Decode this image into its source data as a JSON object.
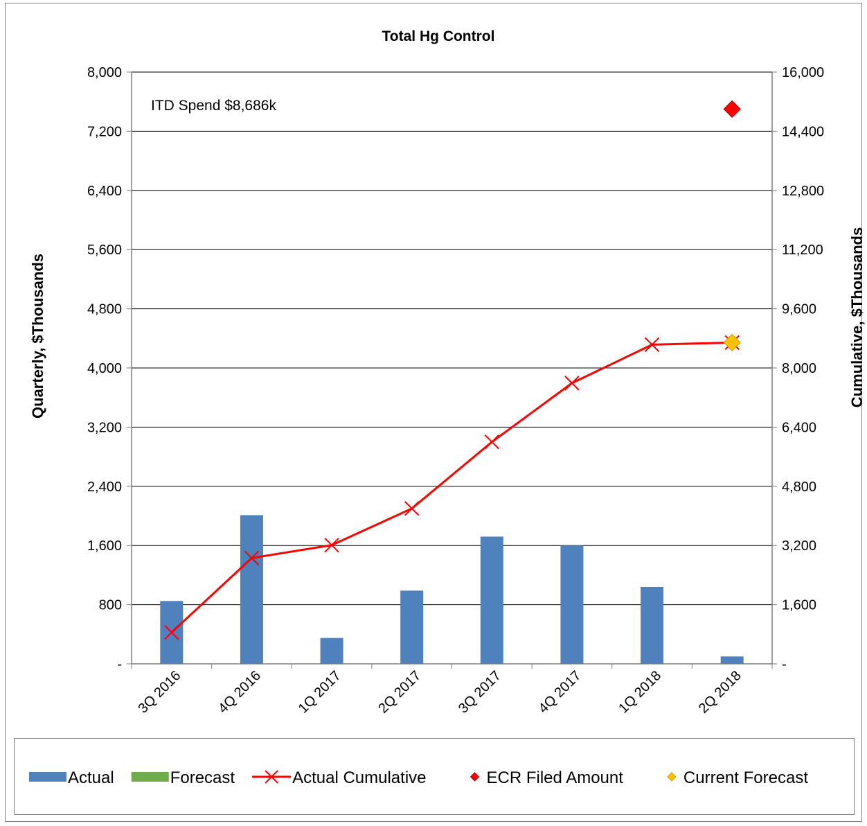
{
  "chart_data": {
    "type": "bar",
    "title": "Total Hg Control",
    "annotation": "ITD Spend  $8,686k",
    "ylabel": "Quarterly, $Thousands",
    "y2label": "Cumulative, $Thousands",
    "ylim": [
      0,
      8000
    ],
    "y2lim": [
      0,
      16000
    ],
    "yticks": [
      "-",
      "800",
      "1,600",
      "2,400",
      "3,200",
      "4,000",
      "4,800",
      "5,600",
      "6,400",
      "7,200",
      "8,000"
    ],
    "y2ticks": [
      "-",
      "1,600",
      "3,200",
      "4,800",
      "6,400",
      "8,000",
      "9,600",
      "11,200",
      "12,800",
      "14,400",
      "16,000"
    ],
    "categories": [
      "3Q 2016",
      "4Q 2016",
      "1Q 2017",
      "2Q 2017",
      "3Q 2017",
      "4Q 2017",
      "1Q 2018",
      "2Q 2018"
    ],
    "grid": true,
    "legend_position": "bottom",
    "series": [
      {
        "name": "Actual",
        "type": "bar",
        "axis": "left",
        "color": "#4f81bd",
        "values": [
          850,
          2010,
          350,
          990,
          1720,
          1600,
          1040,
          100
        ]
      },
      {
        "name": "Forecast",
        "type": "bar",
        "axis": "left",
        "color": "#70ad47",
        "values": [
          0,
          0,
          0,
          0,
          0,
          0,
          0,
          0
        ]
      },
      {
        "name": "Actual Cumulative",
        "type": "line",
        "axis": "right",
        "color": "#ff0000",
        "values": [
          850,
          2860,
          3210,
          4200,
          6000,
          7590,
          8630,
          8686
        ]
      },
      {
        "name": "ECR Filed Amount",
        "type": "marker",
        "axis": "right",
        "color": "#ff0000",
        "points": [
          {
            "category": "2Q 2018",
            "value": 15000
          }
        ]
      },
      {
        "name": "Current Forecast",
        "type": "marker",
        "axis": "right",
        "color": "#ffc000",
        "points": [
          {
            "category": "2Q 2018",
            "value": 8686
          }
        ]
      }
    ]
  }
}
